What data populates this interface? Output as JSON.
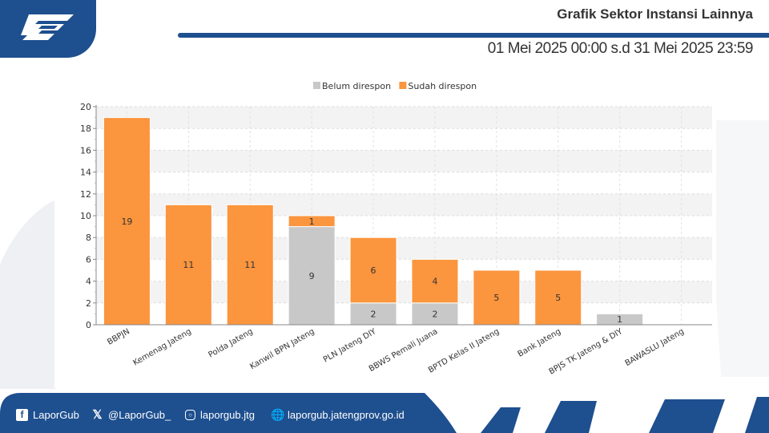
{
  "header": {
    "title": "Grafik Sektor Instansi Lainnya",
    "date_range": "01 Mei 2025 00:00 s.d 31 Mei 2025 23:59"
  },
  "colors": {
    "brand_blue": "#1e4f8f",
    "belum": "#c8c8c8",
    "sudah": "#fb953e"
  },
  "footer": {
    "facebook": "LaporGub",
    "x": "@LaporGub_",
    "instagram": "laporgub.jtg",
    "website": "laporgub.jatengprov.go.id"
  },
  "chart_data": {
    "type": "bar",
    "stacked": true,
    "categories": [
      "BBPJN",
      "Kemenag Jateng",
      "Polda Jateng",
      "Kanwil BPN Jateng",
      "PLN Jateng DIY",
      "BBWS Pemali Juana",
      "BPTD Kelas II Jateng",
      "Bank Jateng",
      "BPJS TK Jateng & DIY",
      "BAWASLU Jateng"
    ],
    "series": [
      {
        "name": "Belum direspon",
        "color": "#c8c8c8",
        "values": [
          0,
          0,
          0,
          9,
          2,
          2,
          0,
          0,
          1,
          0
        ]
      },
      {
        "name": "Sudah direspon",
        "color": "#fb953e",
        "values": [
          19,
          11,
          11,
          1,
          6,
          4,
          5,
          5,
          0,
          0
        ]
      }
    ],
    "ylim": [
      0,
      20
    ],
    "yticks": [
      "0",
      "2",
      "4",
      "6",
      "8",
      "10",
      "12",
      "14",
      "16",
      "18",
      "20"
    ],
    "legend_position": "top-center",
    "grid": true
  }
}
